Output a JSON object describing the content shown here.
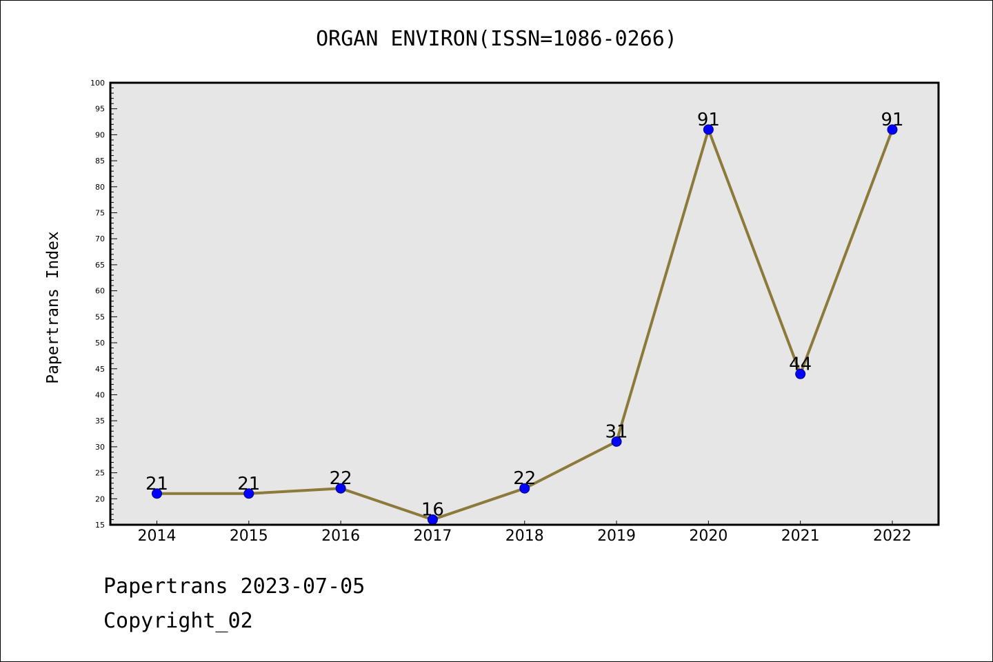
{
  "chart_data": {
    "type": "line",
    "title": "ORGAN ENVIRON(ISSN=1086-0266)",
    "xlabel": "",
    "ylabel": "Papertrans Index",
    "categories": [
      "2014",
      "2015",
      "2016",
      "2017",
      "2018",
      "2019",
      "2020",
      "2021",
      "2022"
    ],
    "series": [
      {
        "values": [
          21,
          21,
          22,
          16,
          22,
          31,
          91,
          44,
          91
        ]
      }
    ],
    "ylim": [
      15,
      100
    ],
    "ytick_step": 5,
    "grid": false,
    "data_labels": true,
    "colors": {
      "line": "#8b7a3a",
      "marker": "#0000ff",
      "plot_background": "#e6e6e6"
    }
  },
  "footer": {
    "line1": "Papertrans 2023-07-05",
    "line2": "Copyright_02"
  }
}
